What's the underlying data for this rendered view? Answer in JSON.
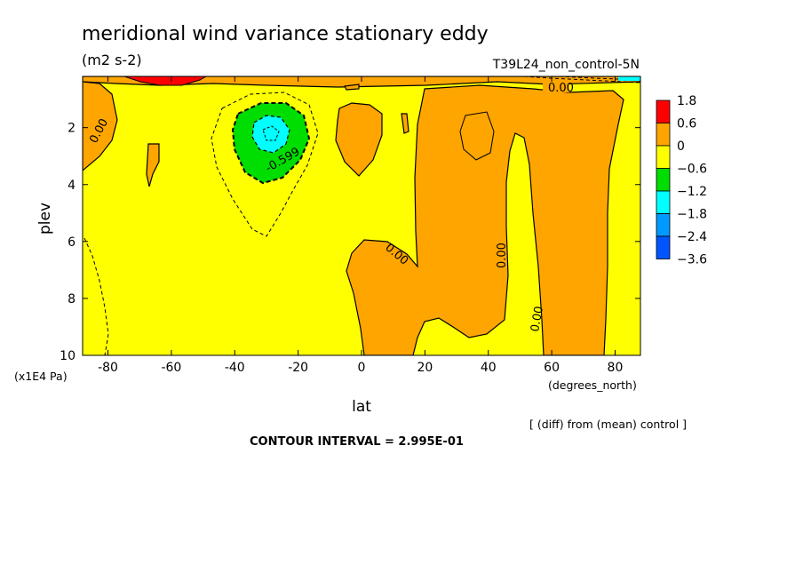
{
  "chart_data": {
    "type": "contour",
    "title": "meridional wind variance  stationary eddy",
    "units": "(m2 s-2)",
    "run_label": "T39L24_non_control-5N",
    "xlabel": "lat",
    "xunits": "(degrees_north)",
    "ylabel": "plev",
    "yunits": "(x1E4 Pa)",
    "x_ticks": [
      "-80",
      "-60",
      "-40",
      "-20",
      "0",
      "20",
      "40",
      "60",
      "80"
    ],
    "y_ticks": [
      "2",
      "4",
      "6",
      "8",
      "10"
    ],
    "xlim": [
      -88,
      88
    ],
    "ylim": [
      10,
      0.2
    ],
    "colorbar": {
      "labels": [
        "1.8",
        "0.6",
        "0",
        "−0.6",
        "−1.2",
        "−1.8",
        "−2.4",
        "−3.6"
      ],
      "colors": [
        "#ff0000",
        "#ffa500",
        "#ffff00",
        "#00dd00",
        "#00ffff",
        "#0099ff",
        "#0055ff"
      ]
    },
    "contour_labels": [
      "0.00",
      "0.00",
      "0.00",
      "0.00",
      "0.00",
      "-0.599"
    ],
    "diff_note": "[ (diff) from (mean) control ]",
    "contour_interval": "CONTOUR INTERVAL = 2.995E-01"
  }
}
